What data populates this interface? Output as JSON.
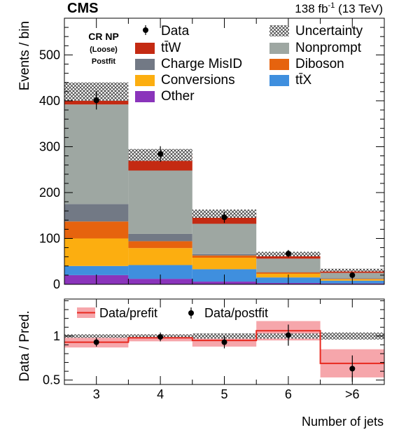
{
  "header": {
    "experiment": "CMS",
    "lumi_prefix": "138 fb",
    "lumi_exp": "-1",
    "lumi_suffix": " (13 TeV)"
  },
  "region": {
    "line1": "CR NP",
    "line2": "(Loose)",
    "line3": "Postfit"
  },
  "legend": {
    "data": "Data",
    "uncertainty": "Uncertainty",
    "ttw": "tt̄W",
    "nonprompt": "Nonprompt",
    "chargemisid": "Charge MisID",
    "diboson": "Diboson",
    "conversions": "Conversions",
    "ttx": "tt̄X",
    "other": "Other"
  },
  "ratio_legend": {
    "prefit": "Data/prefit",
    "postfit": "Data/postfit"
  },
  "colors": {
    "ttW": "#c42a12",
    "Nonprompt": "#9ea7a2",
    "Charge MisID": "#727985",
    "Diboson": "#e6630e",
    "Conversions": "#fcae10",
    "ttX": "#3f8fde",
    "Other": "#8a34bb",
    "prefit": "#f4969c",
    "prefit_line": "#e8291f"
  },
  "chart_data": [
    {
      "type": "bar",
      "stacked": true,
      "categories": [
        "3",
        "4",
        "5",
        "6",
        ">6"
      ],
      "ylabel": "Events / bin",
      "ylim": [
        0,
        580
      ],
      "yticks": [
        0,
        100,
        200,
        300,
        400,
        500
      ],
      "series": [
        {
          "name": "Other",
          "values": [
            20,
            12,
            6,
            3,
            2
          ]
        },
        {
          "name": "tt̅X",
          "values": [
            20,
            30,
            27,
            12,
            6
          ]
        },
        {
          "name": "Conversions",
          "values": [
            60,
            37,
            25,
            8,
            3
          ]
        },
        {
          "name": "Diboson",
          "values": [
            37,
            15,
            5,
            3,
            1
          ]
        },
        {
          "name": "Charge MisID",
          "values": [
            38,
            16,
            3,
            1,
            1
          ]
        },
        {
          "name": "Nonprompt",
          "values": [
            217,
            138,
            66,
            29,
            12
          ]
        },
        {
          "name": "tt̅W",
          "values": [
            28,
            34,
            22,
            10,
            6
          ]
        }
      ],
      "totals": [
        420,
        282,
        154,
        66,
        31
      ],
      "uncertainty": [
        20,
        13,
        9,
        5,
        3
      ],
      "data": [
        401,
        284,
        146,
        67,
        20
      ],
      "data_err": [
        20,
        17,
        12,
        8,
        5
      ]
    },
    {
      "type": "scatter",
      "categories": [
        "3",
        "4",
        "5",
        "6",
        ">6"
      ],
      "xlabel": "Number of jets",
      "ylabel": "Data / Pred.",
      "ylim": [
        0.45,
        1.42
      ],
      "yticks": [
        0.5,
        1
      ],
      "ytick_labels": [
        "0.5",
        "1"
      ],
      "uncertainty": [
        0.02,
        0.02,
        0.03,
        0.03,
        0.04
      ],
      "prefit_ratio": [
        0.93,
        0.98,
        0.95,
        1.06,
        0.69
      ],
      "prefit_err": [
        0.06,
        0.04,
        0.07,
        0.11,
        0.16
      ],
      "postfit_ratio": [
        0.93,
        0.99,
        0.93,
        1.01,
        0.63
      ],
      "postfit_err": [
        0.05,
        0.05,
        0.07,
        0.12,
        0.15
      ]
    }
  ]
}
